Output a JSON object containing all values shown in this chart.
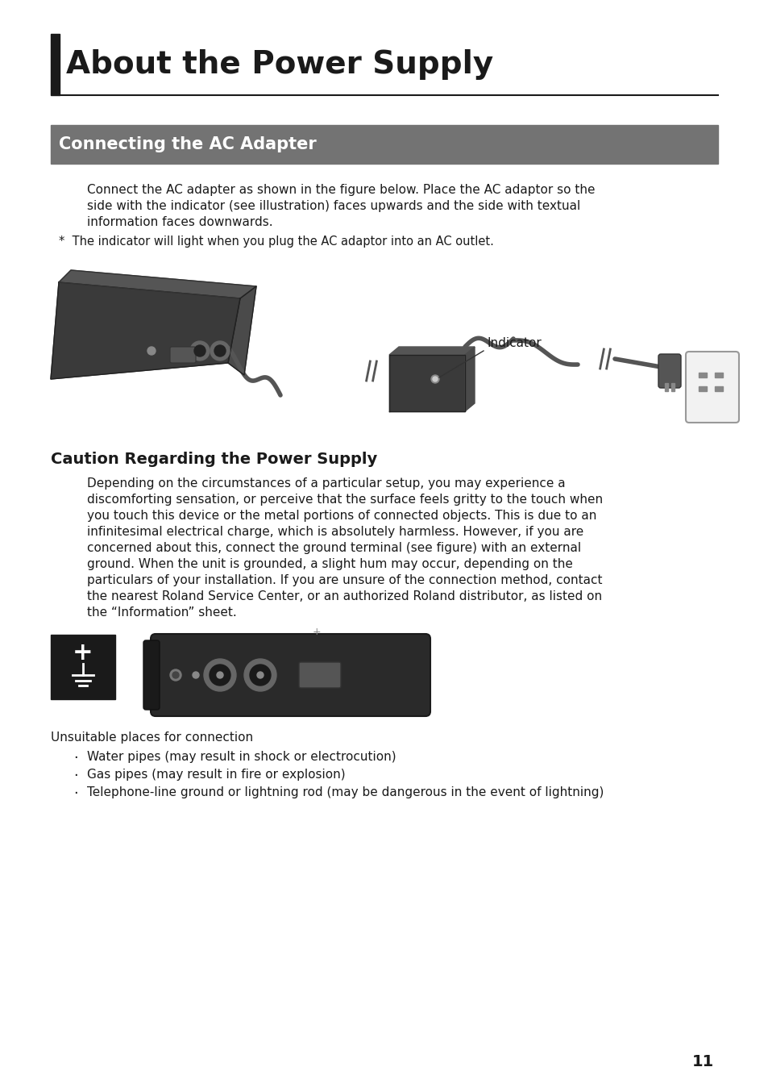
{
  "page_bg": "#ffffff",
  "page_number": "11",
  "title": "About the Power Supply",
  "title_bar_color": "#1a1a1a",
  "section1_bg": "#737373",
  "section1_text": "Connecting the AC Adapter",
  "section1_text_color": "#ffffff",
  "body_text_color": "#1a1a1a",
  "para1_lines": [
    "Connect the AC adapter as shown in the figure below. Place the AC adaptor so the",
    "side with the indicator (see illustration) faces upwards and the side with textual",
    "information faces downwards."
  ],
  "note1": "*  The indicator will light when you plug the AC adaptor into an AC outlet.",
  "indicator_label": "Indicator",
  "section2_title": "Caution Regarding the Power Supply",
  "para2_lines": [
    "Depending on the circumstances of a particular setup, you may experience a",
    "discomforting sensation, or perceive that the surface feels gritty to the touch when",
    "you touch this device or the metal portions of connected objects. This is due to an",
    "infinitesimal electrical charge, which is absolutely harmless. However, if you are",
    "concerned about this, connect the ground terminal (see figure) with an external",
    "ground. When the unit is grounded, a slight hum may occur, depending on the",
    "particulars of your installation. If you are unsure of the connection method, contact",
    "the nearest Roland Service Center, or an authorized Roland distributor, as listed on",
    "the “Information” sheet."
  ],
  "unsuitable_label": "Unsuitable places for connection",
  "bullet_items": [
    "Water pipes (may result in shock or electrocution)",
    "Gas pipes (may result in fire or explosion)",
    "Telephone-line ground or lightning rod (may be dangerous in the event of lightning)"
  ]
}
